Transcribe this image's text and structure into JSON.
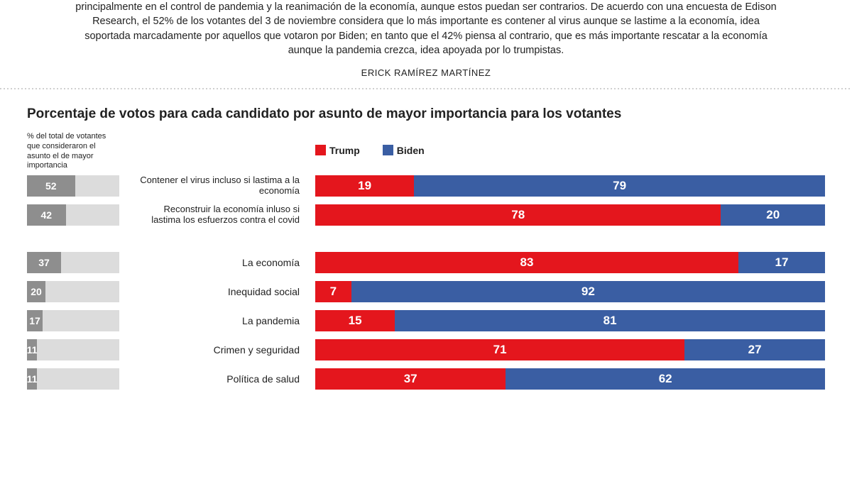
{
  "intro_text": "principalmente en el control de pandemia y la reanimación de la economía, aunque estos puedan ser contrarios. De acuerdo con una encuesta de Edison Research, el 52% de los votantes del 3 de noviembre considera que lo más importante es contener al virus aunque se lastime a la economía, idea soportada marcadamente por aquellos que votaron por Biden; en tanto que el 42% piensa al contrario, que es más importante rescatar a la economía aunque la pandemia crezca, idea apoyada por lo trumpistas.",
  "author": "ERICK RAMÍREZ MARTÍNEZ",
  "chart_title": "Porcentaje de votos para cada candidato por asunto de mayor importancia para los votantes",
  "left_header": "% del total de votantes que consideraron el asunto el de mayor importancia",
  "legend": {
    "trump": "Trump",
    "biden": "Biden"
  },
  "colors": {
    "trump": "#e4161d",
    "biden": "#3a5ea3",
    "pct_fill": "#8e8e8e",
    "pct_bg": "#dcdcdc",
    "text": "#222222",
    "bg": "#ffffff"
  },
  "rows": [
    {
      "pct": 52,
      "label": "Contener el virus incluso si lastima a la economía",
      "trump": 19,
      "biden": 79,
      "scale": 98
    },
    {
      "pct": 42,
      "label": "Reconstruir la economía inluso si lastima los esfuerzos contra el covid",
      "trump": 78,
      "biden": 20,
      "scale": 98
    },
    {
      "gap": true
    },
    {
      "pct": 37,
      "label": "La economía",
      "trump": 83,
      "biden": 17,
      "scale": 100
    },
    {
      "pct": 20,
      "label": "Inequidad social",
      "trump": 7,
      "biden": 92,
      "scale": 99
    },
    {
      "pct": 17,
      "label": "La pandemia",
      "trump": 15,
      "biden": 81,
      "scale": 96
    },
    {
      "pct": 11,
      "label": "Crimen y seguridad",
      "trump": 71,
      "biden": 27,
      "scale": 98
    },
    {
      "pct": 11,
      "label": "Política de salud",
      "trump": 37,
      "biden": 62,
      "scale": 99
    }
  ],
  "font": {
    "title_size": 19,
    "body_size": 14.5,
    "bar_value_size": 17
  }
}
